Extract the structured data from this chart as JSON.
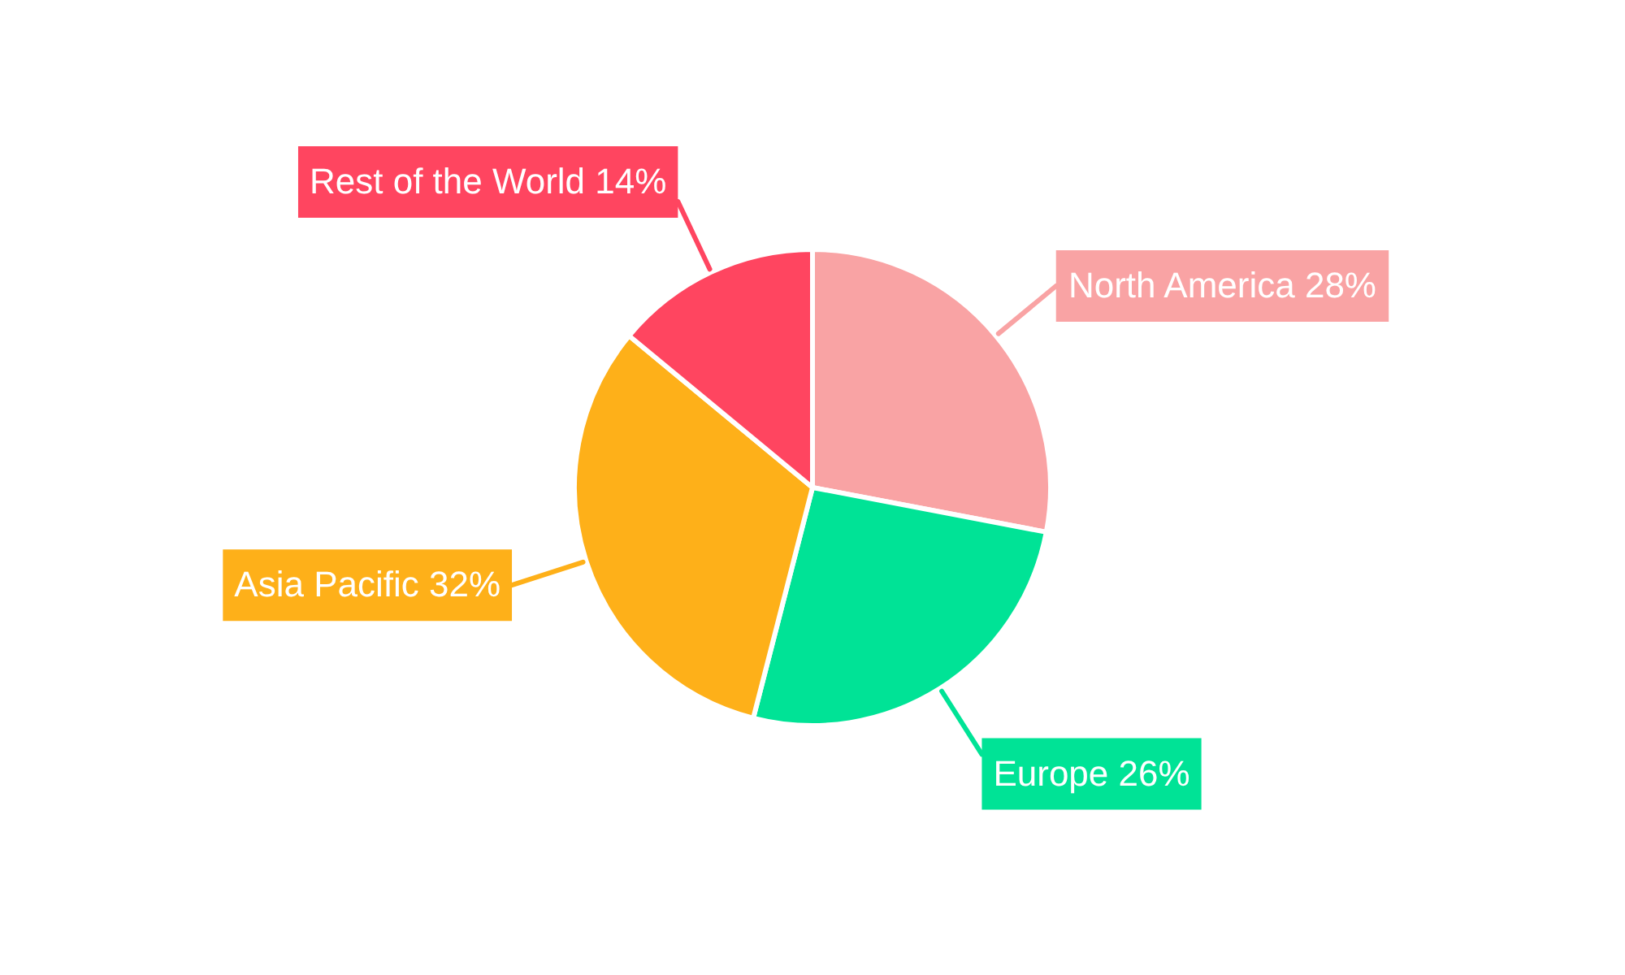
{
  "chart_data": {
    "type": "pie",
    "categories": [
      "North America",
      "Europe",
      "Asia Pacific",
      "Rest of the World"
    ],
    "values": [
      28,
      26,
      32,
      14
    ],
    "colors": [
      "#f9a3a4",
      "#00e396",
      "#feb019",
      "#ff4560"
    ],
    "value_labels": [
      "28%",
      "26%",
      "32%",
      "14%"
    ]
  }
}
